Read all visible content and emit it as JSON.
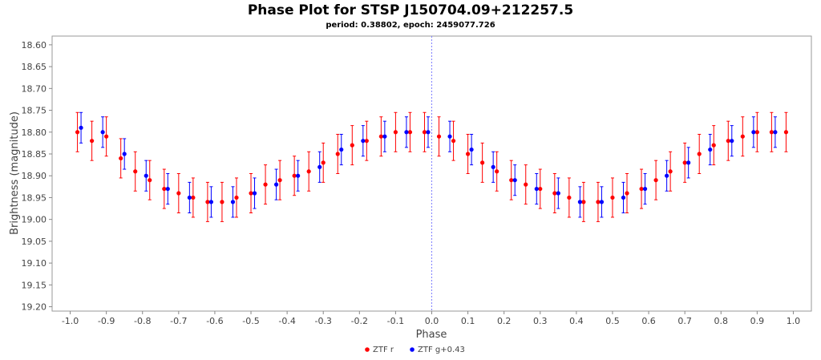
{
  "chart_data": {
    "type": "scatter",
    "title": "Phase Plot for STSP J150704.09+212257.5",
    "subtitle": "period: 0.38802, epoch: 2459077.726",
    "xlabel": "Phase",
    "ylabel": "Brightness (magnitude)",
    "xlim": [
      -1.05,
      1.05
    ],
    "ylim": [
      18.58,
      19.21
    ],
    "y_inverted": true,
    "x_ticks": [
      -1.0,
      -0.9,
      -0.8,
      -0.7,
      -0.6,
      -0.5,
      -0.4,
      -0.3,
      -0.2,
      -0.1,
      0.0,
      0.1,
      0.2,
      0.3,
      0.4,
      0.5,
      0.6,
      0.7,
      0.8,
      0.9,
      1.0
    ],
    "x_tick_labels": [
      "-1.0",
      "-0.9",
      "-0.8",
      "-0.7",
      "-0.6",
      "-0.5",
      "-0.4",
      "-0.3",
      "-0.2",
      "-0.1",
      "0.0",
      "0.1",
      "0.2",
      "0.3",
      "0.4",
      "0.5",
      "0.6",
      "0.7",
      "0.8",
      "0.9",
      "1.0"
    ],
    "y_ticks": [
      18.6,
      18.65,
      18.7,
      18.75,
      18.8,
      18.85,
      18.9,
      18.95,
      19.0,
      19.05,
      19.1,
      19.15,
      19.2
    ],
    "y_tick_labels": [
      "18.60",
      "18.65",
      "18.70",
      "18.75",
      "18.80",
      "18.85",
      "18.90",
      "18.95",
      "19.00",
      "19.05",
      "19.10",
      "19.15",
      "19.20"
    ],
    "grid": false,
    "epoch_marker_x": 0.0,
    "legend_position": "bottom-center",
    "series": [
      {
        "name": "ZTF r",
        "color": "#ff0000",
        "error_bar": 0.045,
        "x": [
          -0.98,
          -0.94,
          -0.9,
          -0.86,
          -0.82,
          -0.78,
          -0.74,
          -0.7,
          -0.66,
          -0.62,
          -0.58,
          -0.54,
          -0.5,
          -0.46,
          -0.42,
          -0.38,
          -0.34,
          -0.3,
          -0.26,
          -0.22,
          -0.18,
          -0.14,
          -0.1,
          -0.06,
          -0.02,
          0.02,
          0.06,
          0.1,
          0.14,
          0.18,
          0.22,
          0.26,
          0.3,
          0.34,
          0.38,
          0.42,
          0.46,
          0.5,
          0.54,
          0.58,
          0.62,
          0.66,
          0.7,
          0.74,
          0.78,
          0.82,
          0.86,
          0.9,
          0.94,
          0.98
        ],
        "y": [
          18.8,
          18.82,
          18.81,
          18.86,
          18.89,
          18.91,
          18.93,
          18.94,
          18.95,
          18.96,
          18.96,
          18.95,
          18.94,
          18.92,
          18.91,
          18.9,
          18.89,
          18.87,
          18.85,
          18.83,
          18.82,
          18.81,
          18.8,
          18.8,
          18.8,
          18.81,
          18.82,
          18.85,
          18.87,
          18.89,
          18.91,
          18.92,
          18.93,
          18.94,
          18.95,
          18.96,
          18.96,
          18.95,
          18.94,
          18.93,
          18.91,
          18.89,
          18.87,
          18.85,
          18.83,
          18.82,
          18.81,
          18.8,
          18.8,
          18.8
        ]
      },
      {
        "name": "ZTF g+0.43",
        "color": "#0000ff",
        "error_bar": 0.035,
        "x": [
          -0.97,
          -0.91,
          -0.85,
          -0.79,
          -0.73,
          -0.67,
          -0.61,
          -0.55,
          -0.49,
          -0.43,
          -0.37,
          -0.31,
          -0.25,
          -0.19,
          -0.13,
          -0.07,
          -0.01,
          0.05,
          0.11,
          0.17,
          0.23,
          0.29,
          0.35,
          0.41,
          0.47,
          0.53,
          0.59,
          0.65,
          0.71,
          0.77,
          0.83,
          0.89,
          0.95
        ],
        "y": [
          18.79,
          18.8,
          18.85,
          18.9,
          18.93,
          18.95,
          18.96,
          18.96,
          18.94,
          18.92,
          18.9,
          18.88,
          18.84,
          18.82,
          18.81,
          18.8,
          18.8,
          18.81,
          18.84,
          18.88,
          18.91,
          18.93,
          18.94,
          18.96,
          18.96,
          18.95,
          18.93,
          18.9,
          18.87,
          18.84,
          18.82,
          18.8,
          18.8
        ]
      }
    ],
    "legend": [
      {
        "label": "ZTF r",
        "color": "#ff0000"
      },
      {
        "label": "ZTF g+0.43",
        "color": "#0000ff"
      }
    ]
  }
}
